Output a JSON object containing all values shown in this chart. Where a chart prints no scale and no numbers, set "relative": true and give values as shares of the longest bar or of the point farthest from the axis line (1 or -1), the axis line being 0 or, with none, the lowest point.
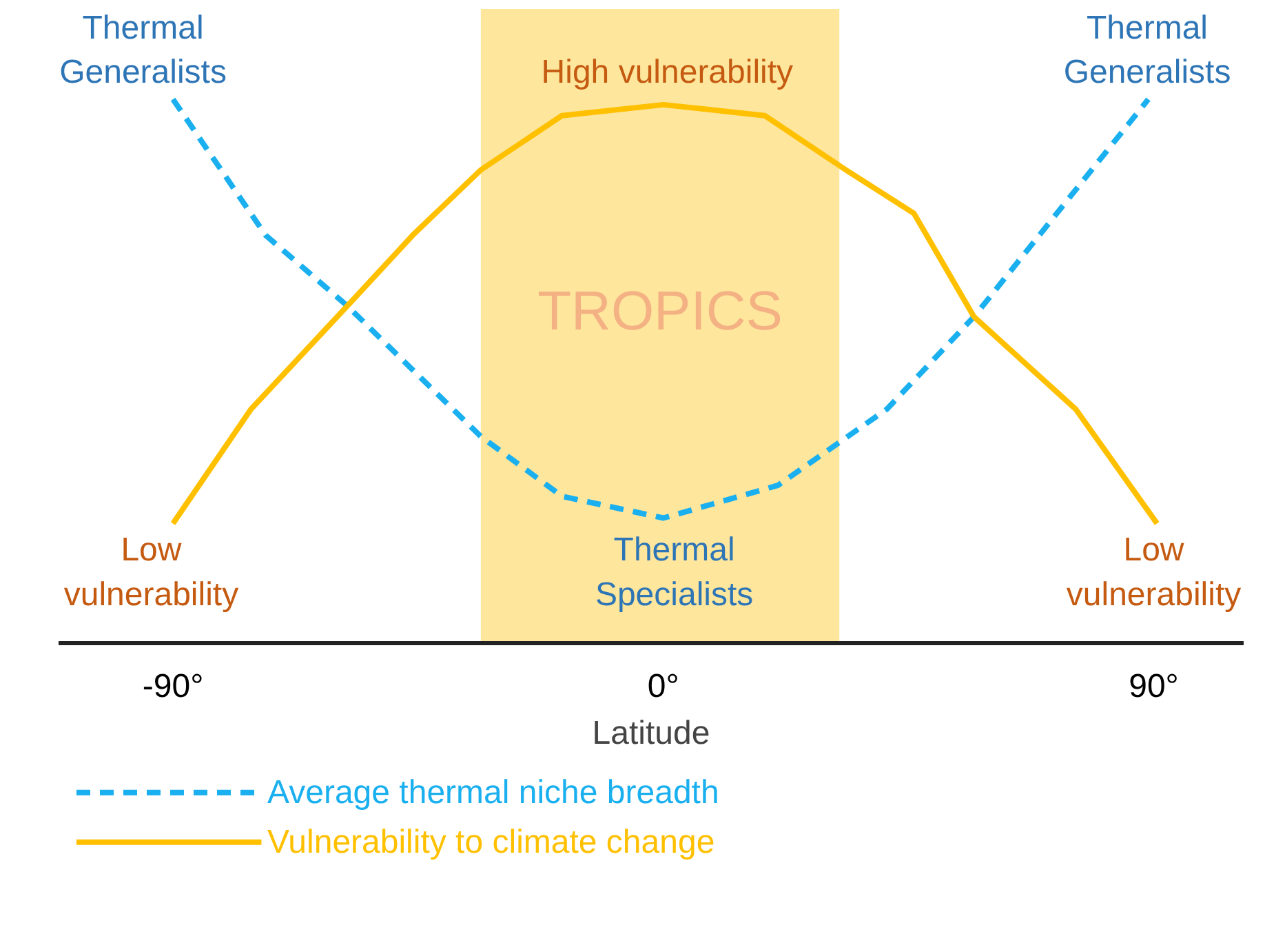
{
  "chart_data": {
    "type": "line",
    "relative": true,
    "xlabel": "Latitude",
    "xlim": [
      -111,
      106.5
    ],
    "xticks": [
      {
        "value": -90,
        "label": "-90°"
      },
      {
        "value": 0,
        "label": "0°"
      },
      {
        "value": 90,
        "label": "90°"
      }
    ],
    "grid": false,
    "legend": "bottom left",
    "marker": "none",
    "series": [
      {
        "name": "Average thermal niche breadth",
        "color": "#1ab0f0",
        "line_style": "dashed",
        "x": [
          -90,
          -73,
          -58,
          -33.5,
          -18.6,
          0,
          21,
          41,
          57,
          73,
          89
        ],
        "values": [
          1.0,
          0.75,
          0.62,
          0.38,
          0.27,
          0.23,
          0.29,
          0.43,
          0.6,
          0.8,
          1.0
        ]
      },
      {
        "name": "Vulnerability to climate change",
        "color": "#ffc000",
        "line_style": "solid",
        "x": [
          -90,
          -75.7,
          -58,
          -46,
          -33.5,
          -18.6,
          0,
          18.6,
          33.5,
          46,
          57,
          75.7,
          90.6
        ],
        "values": [
          0.22,
          0.43,
          0.62,
          0.75,
          0.87,
          0.97,
          0.99,
          0.97,
          0.87,
          0.79,
          0.6,
          0.43,
          0.22
        ]
      }
    ],
    "bands": [
      {
        "axis": "x",
        "from": -33.5,
        "to": 32.3,
        "label": "TROPICS",
        "color": "#fee69d"
      }
    ],
    "annotations": [
      "Thermal\nGeneralists",
      "Thermal\nGeneralists",
      "High vulnerability",
      "Low\nvulnerability",
      "Low\nvulnerability",
      "Thermal\nSpecialists"
    ]
  }
}
